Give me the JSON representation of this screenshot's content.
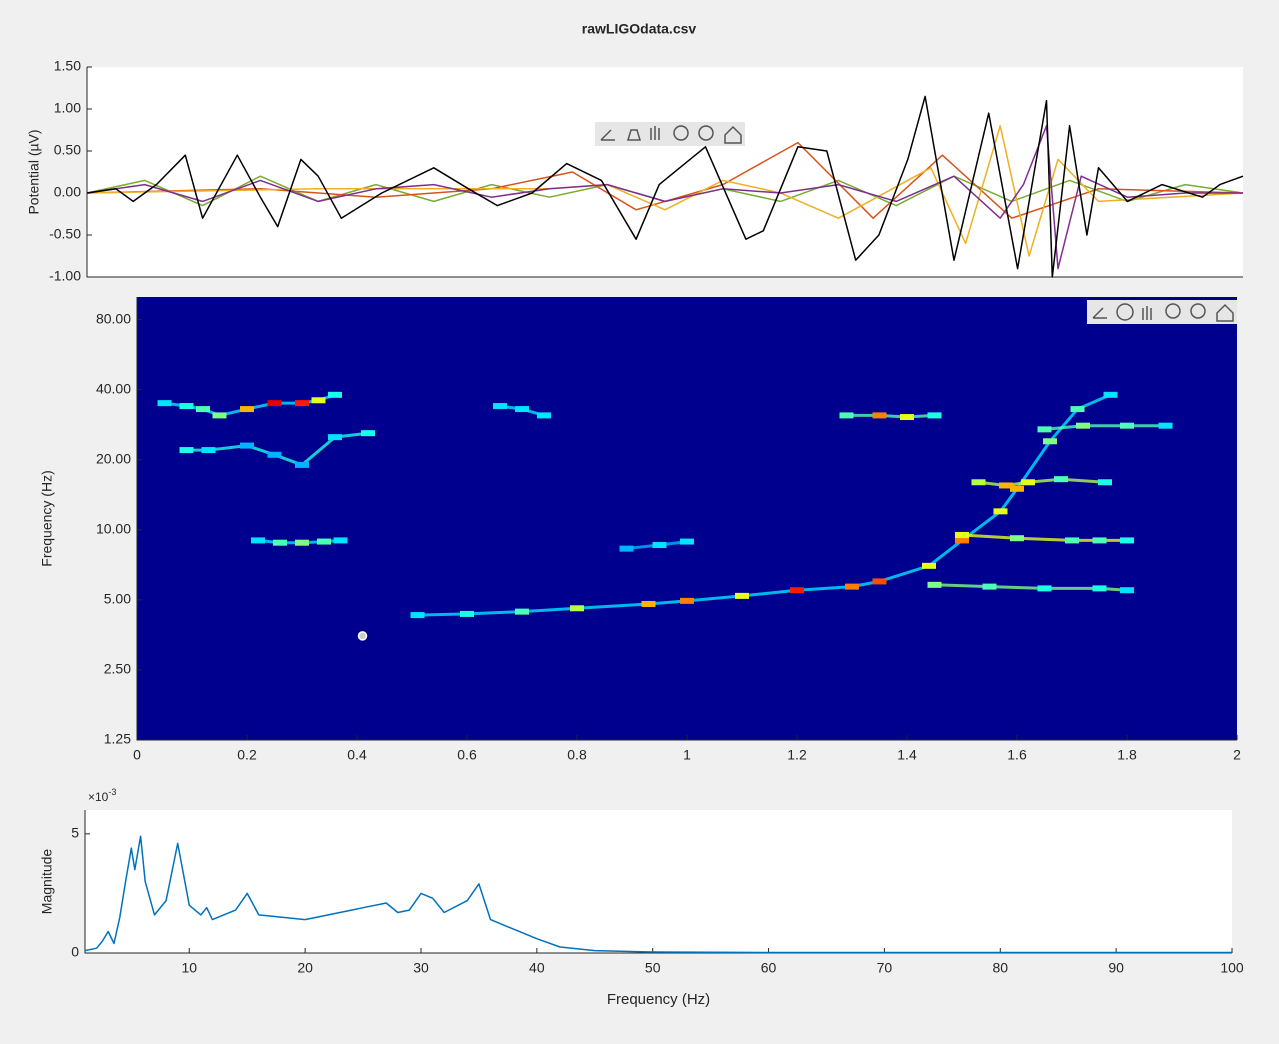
{
  "title": "rawLIGOdata.csv",
  "chart_data": [
    {
      "type": "line",
      "ylabel": "Potential (µV)",
      "xlim": [
        0,
        2
      ],
      "ylim": [
        -1,
        1.5
      ],
      "yticks": [
        {
          "value": -1,
          "label": "-1.00"
        },
        {
          "value": -0.5,
          "label": "-0.50"
        },
        {
          "value": 0,
          "label": "0.00"
        },
        {
          "value": 0.5,
          "label": "0.50"
        },
        {
          "value": 1,
          "label": "1.00"
        },
        {
          "value": 1.5,
          "label": "1.50"
        }
      ],
      "series": [
        {
          "color": "#77ac30",
          "x": [
            0,
            0.1,
            0.2,
            0.3,
            0.4,
            0.5,
            0.6,
            0.7,
            0.8,
            0.9,
            1.0,
            1.1,
            1.2,
            1.3,
            1.4,
            1.5,
            1.6,
            1.7,
            1.8,
            1.9,
            2
          ],
          "values": [
            0,
            0.15,
            -0.15,
            0.2,
            -0.1,
            0.1,
            -0.1,
            0.1,
            -0.05,
            0.1,
            -0.1,
            0.05,
            -0.1,
            0.15,
            -0.15,
            0.2,
            -0.1,
            0.15,
            -0.1,
            0.1,
            0
          ]
        },
        {
          "color": "#d95319",
          "x": [
            0,
            0.3,
            0.5,
            0.7,
            0.84,
            0.95,
            1.1,
            1.23,
            1.36,
            1.48,
            1.6,
            1.75,
            2
          ],
          "values": [
            0,
            0.05,
            -0.05,
            0.05,
            0.25,
            -0.2,
            0.1,
            0.6,
            -0.3,
            0.45,
            -0.3,
            0.05,
            0
          ]
        },
        {
          "color": "#edb120",
          "x": [
            0,
            0.4,
            0.8,
            0.9,
            1.0,
            1.1,
            1.2,
            1.3,
            1.46,
            1.52,
            1.58,
            1.63,
            1.68,
            1.75,
            2
          ],
          "values": [
            0,
            0.05,
            0.05,
            0.1,
            -0.2,
            0.15,
            0,
            -0.3,
            0.3,
            -0.6,
            0.8,
            -0.75,
            0.4,
            -0.1,
            0
          ]
        },
        {
          "color": "#7e2f8e",
          "x": [
            0,
            0.1,
            0.2,
            0.3,
            0.4,
            0.5,
            0.6,
            0.7,
            0.8,
            0.9,
            1.0,
            1.1,
            1.2,
            1.3,
            1.4,
            1.5,
            1.58,
            1.62,
            1.66,
            1.68,
            1.72,
            1.8,
            1.9,
            2
          ],
          "values": [
            0,
            0.1,
            -0.1,
            0.15,
            -0.1,
            0.05,
            0.1,
            -0.05,
            0.05,
            0.1,
            -0.1,
            0.05,
            0,
            0.1,
            -0.1,
            0.2,
            -0.3,
            0.1,
            0.8,
            -0.9,
            0.2,
            -0.05,
            0,
            0
          ]
        },
        {
          "color": "#000000",
          "x": [
            0,
            0.05,
            0.08,
            0.12,
            0.17,
            0.2,
            0.26,
            0.3,
            0.33,
            0.37,
            0.4,
            0.44,
            0.51,
            0.6,
            0.66,
            0.71,
            0.77,
            0.83,
            0.89,
            0.95,
            0.99,
            1.07,
            1.14,
            1.17,
            1.23,
            1.28,
            1.33,
            1.37,
            1.42,
            1.45,
            1.5,
            1.56,
            1.61,
            1.66,
            1.67,
            1.7,
            1.73,
            1.75,
            1.8,
            1.86,
            1.93,
            1.96,
            2
          ],
          "values": [
            0,
            0.05,
            -0.1,
            0.1,
            0.45,
            -0.3,
            0.45,
            -0.05,
            -0.4,
            0.4,
            0.2,
            -0.3,
            0,
            0.3,
            0.05,
            -0.15,
            0,
            0.35,
            0.15,
            -0.55,
            0.1,
            0.55,
            -0.55,
            -0.45,
            0.55,
            0.5,
            -0.8,
            -0.5,
            0.4,
            1.15,
            -0.8,
            0.95,
            -0.9,
            1.1,
            -1,
            0.8,
            -0.5,
            0.3,
            -0.1,
            0.1,
            -0.05,
            0.1,
            0.2
          ]
        }
      ]
    },
    {
      "type": "spectrogram",
      "ylabel": "Frequency (Hz)",
      "log_y": true,
      "background": "#00008f",
      "clim": [
        0,
        1
      ],
      "xlim": [
        0,
        2
      ],
      "ylim": [
        1.25,
        100
      ],
      "xticks": [
        0,
        0.2,
        0.4,
        0.6,
        0.8,
        1,
        1.2,
        1.4,
        1.6,
        1.8,
        2
      ],
      "yticks": [
        {
          "value": 1.25,
          "label": "1.25"
        },
        {
          "value": 2.5,
          "label": "2.50"
        },
        {
          "value": 5,
          "label": "5.00"
        },
        {
          "value": 10,
          "label": "10.00"
        },
        {
          "value": 20,
          "label": "20.00"
        },
        {
          "value": 40,
          "label": "40.00"
        },
        {
          "value": 80,
          "label": "80.00"
        }
      ],
      "point": {
        "x": 0.41,
        "y": 3.5
      },
      "ridges": [
        {
          "x": [
            0.05,
            0.09,
            0.12,
            0.15,
            0.2,
            0.25,
            0.3,
            0.33,
            0.36
          ],
          "y": [
            35,
            34,
            33,
            31,
            33,
            35,
            35,
            36,
            38
          ],
          "intensity": [
            0.35,
            0.4,
            0.45,
            0.5,
            0.7,
            0.9,
            0.85,
            0.6,
            0.4
          ]
        },
        {
          "x": [
            0.09,
            0.13,
            0.2,
            0.25,
            0.3,
            0.36,
            0.42
          ],
          "y": [
            22,
            22,
            23,
            21,
            19,
            25,
            26
          ],
          "intensity": [
            0.4,
            0.35,
            0.3,
            0.3,
            0.3,
            0.35,
            0.4
          ]
        },
        {
          "x": [
            0.22,
            0.26,
            0.3,
            0.34,
            0.37
          ],
          "y": [
            9,
            8.8,
            8.8,
            8.9,
            9
          ],
          "intensity": [
            0.35,
            0.45,
            0.5,
            0.45,
            0.35
          ]
        },
        {
          "x": [
            0.51,
            0.6,
            0.7,
            0.8,
            0.93,
            1.0,
            1.1,
            1.2,
            1.3,
            1.35,
            1.44,
            1.5,
            1.57,
            1.6,
            1.66,
            1.71,
            1.77
          ],
          "y": [
            4.3,
            4.35,
            4.45,
            4.6,
            4.8,
            4.95,
            5.2,
            5.5,
            5.7,
            6.0,
            7.0,
            9,
            12,
            15,
            24,
            33,
            38
          ],
          "intensity": [
            0.35,
            0.4,
            0.45,
            0.55,
            0.7,
            0.75,
            0.6,
            0.85,
            0.75,
            0.8,
            0.6,
            0.75,
            0.6,
            0.7,
            0.5,
            0.45,
            0.35
          ]
        },
        {
          "x": [
            1.45,
            1.55,
            1.65,
            1.75,
            1.8
          ],
          "y": [
            5.8,
            5.7,
            5.6,
            5.6,
            5.5
          ],
          "intensity": [
            0.5,
            0.45,
            0.4,
            0.4,
            0.35
          ]
        },
        {
          "x": [
            1.5,
            1.6,
            1.7,
            1.75,
            1.8
          ],
          "y": [
            9.5,
            9.2,
            9,
            9,
            9
          ],
          "intensity": [
            0.6,
            0.5,
            0.45,
            0.45,
            0.4
          ]
        },
        {
          "x": [
            1.53,
            1.58,
            1.62,
            1.68,
            1.76
          ],
          "y": [
            16,
            15.5,
            16,
            16.5,
            16
          ],
          "intensity": [
            0.55,
            0.7,
            0.6,
            0.45,
            0.4
          ]
        },
        {
          "x": [
            1.65,
            1.72,
            1.8,
            1.87
          ],
          "y": [
            27,
            28,
            28,
            28
          ],
          "intensity": [
            0.45,
            0.5,
            0.45,
            0.35
          ]
        },
        {
          "x": [
            1.29,
            1.35,
            1.4,
            1.45
          ],
          "y": [
            31,
            31,
            30.5,
            31
          ],
          "intensity": [
            0.45,
            0.75,
            0.6,
            0.4
          ]
        },
        {
          "x": [
            0.66,
            0.7,
            0.74
          ],
          "y": [
            34,
            33,
            31
          ],
          "intensity": [
            0.35,
            0.35,
            0.35
          ]
        },
        {
          "x": [
            0.89,
            0.95,
            1.0
          ],
          "y": [
            8.3,
            8.6,
            8.9
          ],
          "intensity": [
            0.3,
            0.35,
            0.35
          ]
        }
      ]
    },
    {
      "type": "line",
      "xlabel": "Frequency (Hz)",
      "ylabel": "Magnitude",
      "y_multiplier": "×10",
      "y_exponent": "-3",
      "xlim": [
        1,
        100
      ],
      "ylim": [
        0,
        6
      ],
      "xticks": [
        10,
        20,
        30,
        40,
        50,
        60,
        70,
        80,
        90,
        100
      ],
      "yticks": [
        0,
        5
      ],
      "series": [
        {
          "color": "#0072bd",
          "x": [
            1,
            2,
            2.5,
            3,
            3.5,
            4,
            4.5,
            5,
            5.3,
            5.8,
            6.2,
            7,
            8,
            9,
            9.5,
            10,
            11,
            11.5,
            12,
            14,
            15,
            16,
            18,
            20,
            22,
            24,
            25,
            27,
            28,
            29,
            30,
            31,
            32,
            34,
            35,
            36,
            38,
            40,
            42,
            45,
            50,
            60,
            80,
            100
          ],
          "values": [
            0.1,
            0.2,
            0.5,
            0.9,
            0.4,
            1.5,
            3,
            4.4,
            3.5,
            4.9,
            3,
            1.6,
            2.2,
            4.6,
            3.3,
            2,
            1.6,
            1.9,
            1.4,
            1.8,
            2.5,
            1.6,
            1.5,
            1.4,
            1.6,
            1.8,
            1.9,
            2.1,
            1.7,
            1.8,
            2.5,
            2.3,
            1.7,
            2.2,
            2.9,
            1.4,
            1.0,
            0.6,
            0.25,
            0.1,
            0.04,
            0.02,
            0.02,
            0.02
          ]
        }
      ]
    }
  ]
}
